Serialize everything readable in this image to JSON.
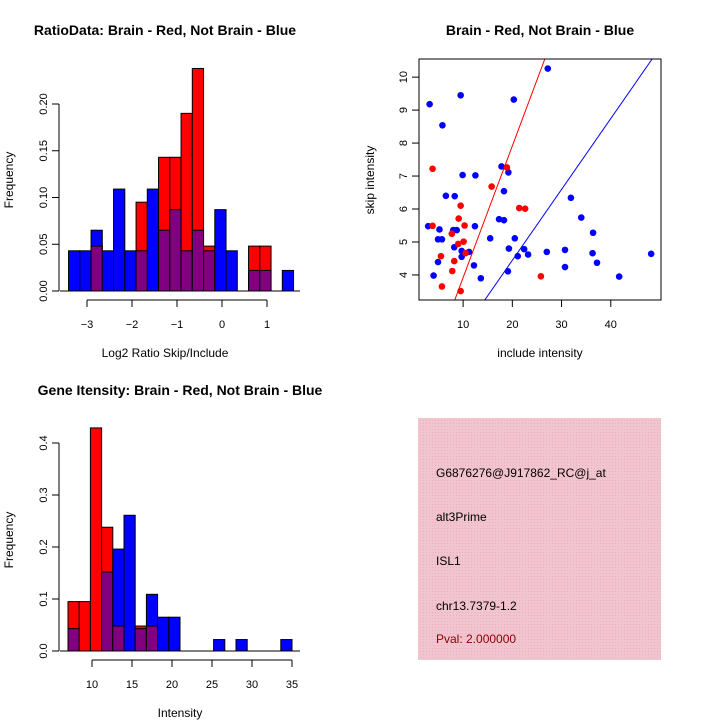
{
  "chart_data": [
    {
      "type": "bar",
      "subtype": "overlaid-histogram",
      "title": "RatioData: Brain - Red, Not Brain - Blue",
      "xlabel": "Log2 Ratio Skip/Include",
      "ylabel": "Frequency",
      "bin_start": -3.41,
      "bin_width": 0.25,
      "xlim": [
        -3.6,
        1.75
      ],
      "ylim": [
        0,
        0.25
      ],
      "xticks": [
        -3,
        -2,
        -1,
        0,
        1
      ],
      "yticks": [
        "0.00",
        "0.05",
        "0.10",
        "0.15",
        "0.20"
      ],
      "series": [
        {
          "name": "Not Brain",
          "color": "#0000ff",
          "values": [
            0.043,
            0.043,
            0.065,
            0.043,
            0.109,
            0.043,
            0.043,
            0.109,
            0.065,
            0.087,
            0.043,
            0.065,
            0.043,
            0.087,
            0.043,
            0,
            0.022,
            0.022,
            0,
            0.022
          ]
        },
        {
          "name": "Brain",
          "color": "#ff0000",
          "values": [
            0,
            0,
            0.048,
            0,
            0,
            0,
            0.095,
            0,
            0.143,
            0.143,
            0.19,
            0.238,
            0.048,
            0,
            0,
            0,
            0.048,
            0.048,
            0,
            0
          ]
        }
      ],
      "overlap_color": "#800080"
    },
    {
      "type": "scatter",
      "title": "Brain - Red, Not Brain - Blue",
      "xlabel": "include intensity",
      "ylabel": "skip intensity",
      "xlim": [
        1.04,
        50.2
      ],
      "ylim": [
        3.24,
        10.55
      ],
      "xticks": [
        10,
        20,
        30,
        40
      ],
      "yticks": [
        4,
        5,
        6,
        7,
        8,
        9,
        10
      ],
      "series": [
        {
          "name": "Not Brain",
          "color": "#0000ff",
          "points": [
            [
              3.2,
              9.18
            ],
            [
              9.5,
              9.45
            ],
            [
              20.3,
              9.32
            ],
            [
              27.2,
              10.26
            ],
            [
              5.8,
              8.54
            ],
            [
              17.8,
              7.29
            ],
            [
              19.2,
              7.11
            ],
            [
              9.9,
              7.03
            ],
            [
              12.5,
              7.02
            ],
            [
              6.5,
              6.4
            ],
            [
              8.3,
              6.39
            ],
            [
              18.3,
              6.54
            ],
            [
              31.9,
              6.34
            ],
            [
              34.0,
              5.74
            ],
            [
              17.3,
              5.69
            ],
            [
              18.3,
              5.66
            ],
            [
              2.9,
              5.48
            ],
            [
              5.2,
              5.38
            ],
            [
              8.0,
              5.36
            ],
            [
              8.7,
              5.36
            ],
            [
              12.4,
              5.48
            ],
            [
              15.5,
              5.11
            ],
            [
              20.5,
              5.11
            ],
            [
              36.4,
              5.28
            ],
            [
              4.9,
              5.08
            ],
            [
              5.7,
              5.08
            ],
            [
              8.2,
              4.84
            ],
            [
              19.3,
              4.8
            ],
            [
              22.4,
              4.78
            ],
            [
              9.7,
              4.73
            ],
            [
              11.2,
              4.7
            ],
            [
              9.7,
              4.55
            ],
            [
              21.1,
              4.57
            ],
            [
              23.2,
              4.62
            ],
            [
              27.0,
              4.7
            ],
            [
              30.7,
              4.76
            ],
            [
              36.3,
              4.66
            ],
            [
              37.2,
              4.37
            ],
            [
              48.2,
              4.64
            ],
            [
              4.9,
              4.39
            ],
            [
              12.2,
              4.29
            ],
            [
              30.7,
              4.24
            ],
            [
              4.0,
              3.98
            ],
            [
              13.6,
              3.9
            ],
            [
              19.1,
              4.11
            ],
            [
              41.7,
              3.95
            ]
          ]
        },
        {
          "name": "Brain",
          "color": "#ff0000",
          "points": [
            [
              3.8,
              7.22
            ],
            [
              18.9,
              7.26
            ],
            [
              15.8,
              6.68
            ],
            [
              9.5,
              6.1
            ],
            [
              21.4,
              6.03
            ],
            [
              22.6,
              6.01
            ],
            [
              9.1,
              5.71
            ],
            [
              3.8,
              5.49
            ],
            [
              10.3,
              5.5
            ],
            [
              7.7,
              5.25
            ],
            [
              10.1,
              5.01
            ],
            [
              9.0,
              4.94
            ],
            [
              5.5,
              4.57
            ],
            [
              10.5,
              4.66
            ],
            [
              8.2,
              4.42
            ],
            [
              7.8,
              4.12
            ],
            [
              5.7,
              3.65
            ],
            [
              9.5,
              3.51
            ],
            [
              25.8,
              3.96
            ]
          ]
        }
      ],
      "lines": [
        {
          "name": "Brain fit",
          "color": "#ff0000",
          "from": [
            8.3,
            3.24
          ],
          "to": [
            26.6,
            10.55
          ]
        },
        {
          "name": "Not Brain fit",
          "color": "#0000ff",
          "from": [
            14.4,
            3.24
          ],
          "to": [
            48.4,
            10.55
          ]
        }
      ]
    },
    {
      "type": "bar",
      "subtype": "overlaid-histogram",
      "title": "Gene Itensity: Brain - Red, Not Brain - Blue",
      "xlabel": "Intensity",
      "ylabel": "Frequency",
      "bin_start": 7,
      "bin_width": 1.4,
      "xlim": [
        6,
        36
      ],
      "ylim": [
        0,
        0.44
      ],
      "xticks": [
        10,
        15,
        20,
        25,
        30,
        35
      ],
      "yticks": [
        "0.0",
        "0.1",
        "0.2",
        "0.3",
        "0.4"
      ],
      "series": [
        {
          "name": "Not Brain",
          "color": "#0000ff",
          "values": [
            0.043,
            0,
            0,
            0.152,
            0.196,
            0.261,
            0.043,
            0.109,
            0.065,
            0.065,
            0,
            0,
            0,
            0.022,
            0,
            0.022,
            0,
            0,
            0,
            0.022
          ]
        },
        {
          "name": "Brain",
          "color": "#ff0000",
          "values": [
            0.095,
            0.095,
            0.429,
            0.238,
            0.048,
            0,
            0.048,
            0.048,
            0,
            0,
            0,
            0,
            0,
            0,
            0,
            0,
            0,
            0,
            0,
            0
          ]
        }
      ],
      "overlap_color": "#800080"
    }
  ],
  "info_panel": {
    "background": "#f2c4cf",
    "lines": [
      "G6876276@J917862_RC@j_at",
      "alt3Prime",
      "ISL1",
      "chr13.7379-1.2"
    ],
    "pval": "Pval: 2.000000",
    "pval_color": "#8b0000"
  }
}
